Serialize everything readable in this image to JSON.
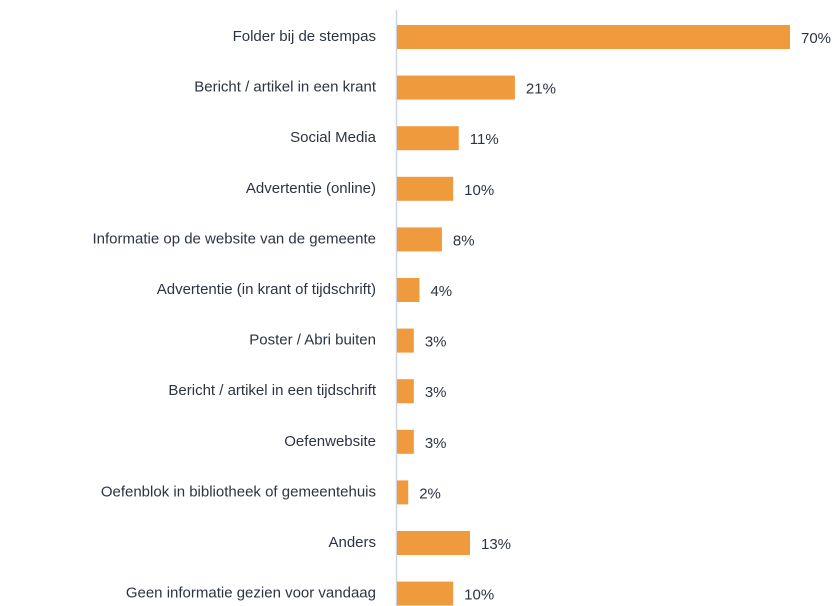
{
  "chart_data": {
    "type": "bar",
    "orientation": "horizontal",
    "categories": [
      "Folder bij de stempas",
      "Bericht / artikel in een krant",
      "Social Media",
      "Advertentie (online)",
      "Informatie op de website van de gemeente",
      "Advertentie (in krant of tijdschrift)",
      "Poster / Abri buiten",
      "Bericht / artikel in een tijdschrift",
      "Oefenwebsite",
      "Oefenblok in bibliotheek of gemeentehuis",
      "Anders",
      "Geen informatie gezien voor vandaag"
    ],
    "values": [
      70,
      21,
      11,
      10,
      8,
      4,
      3,
      3,
      3,
      2,
      13,
      10
    ],
    "value_labels": [
      "70%",
      "21%",
      "11%",
      "10%",
      "8%",
      "4%",
      "3%",
      "3%",
      "3%",
      "2%",
      "13%",
      "10%"
    ],
    "color": "#ef9a3d"
  }
}
